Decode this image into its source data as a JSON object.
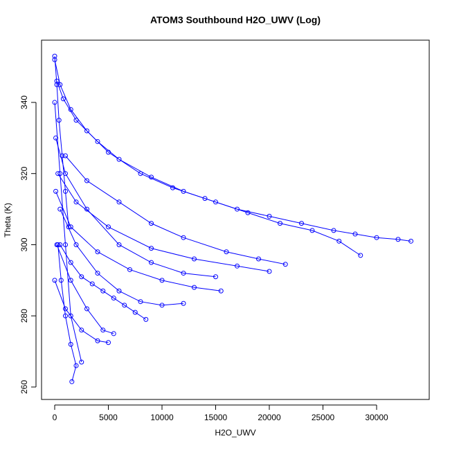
{
  "chart_data": {
    "type": "scatter",
    "title": "ATOM3 Southbound H2O_UWV (Log)",
    "x_label": "H2O_UWV",
    "y_label": "Theta (K)",
    "color": "#0000ff",
    "grid": false,
    "xlim": [
      -1226,
      34903
    ],
    "ylim": [
      256.5,
      357.5
    ],
    "xticks": [
      0,
      5000,
      10000,
      15000,
      20000,
      25000,
      30000
    ],
    "yticks": [
      260,
      280,
      300,
      320,
      340
    ],
    "series": [
      {
        "x": [
          0,
          500,
          1500,
          3000,
          5000,
          8000,
          11000,
          14000,
          17000,
          20000,
          23000,
          26000,
          28000,
          30000,
          32000,
          33200
        ],
        "values": [
          352,
          345,
          338,
          332,
          326,
          320,
          316,
          313,
          310,
          308,
          306,
          304,
          303,
          302,
          301.5,
          301
        ]
      },
      {
        "x": [
          200,
          800,
          2000,
          4000,
          6000,
          9000,
          12000,
          15000,
          18000,
          21000,
          24000,
          26500,
          28500
        ],
        "values": [
          346,
          341,
          335,
          329,
          324,
          319,
          315,
          312,
          309,
          306,
          304,
          301,
          297
        ]
      },
      {
        "x": [
          300,
          600,
          1000,
          1500,
          2000,
          1600
        ],
        "values": [
          300,
          290,
          280,
          272,
          266,
          261.5
        ]
      },
      {
        "x": [
          100,
          1000,
          3000,
          6000,
          9000,
          12000,
          15000
        ],
        "values": [
          330,
          320,
          310,
          300,
          295,
          292,
          291
        ]
      },
      {
        "x": [
          500,
          2000,
          4000,
          6000,
          8000,
          10000,
          12000
        ],
        "values": [
          310,
          300,
          292,
          287,
          284,
          283,
          283.5
        ]
      },
      {
        "x": [
          200,
          1500,
          3000,
          4500,
          5500
        ],
        "values": [
          300,
          290,
          282,
          276,
          275
        ]
      },
      {
        "x": [
          0,
          1000,
          2500,
          4000,
          5000
        ],
        "values": [
          290,
          282,
          276,
          273,
          272.5
        ]
      },
      {
        "x": [
          300,
          2000,
          5000,
          9000,
          13000,
          17000,
          20000
        ],
        "values": [
          320,
          312,
          305,
          299,
          296,
          294,
          292.5
        ]
      },
      {
        "x": [
          100,
          1500,
          4000,
          7000,
          10000,
          13000,
          15500
        ],
        "values": [
          315,
          305,
          298,
          293,
          290,
          288,
          287
        ]
      },
      {
        "x": [
          0,
          500,
          1000,
          1500,
          2500
        ],
        "values": [
          340,
          320,
          300,
          280,
          267
        ]
      },
      {
        "x": [
          1000,
          3000,
          6000,
          9000,
          12000,
          16000,
          19000,
          21500
        ],
        "values": [
          325,
          318,
          312,
          306,
          302,
          298,
          296,
          294.5
        ]
      },
      {
        "x": [
          0,
          200,
          400,
          700,
          1000,
          1300
        ],
        "values": [
          353,
          345,
          335,
          325,
          315,
          305
        ]
      },
      {
        "x": [
          500,
          1500,
          2500,
          3500,
          4500,
          5500,
          6500,
          7500,
          8500
        ],
        "values": [
          300,
          295,
          291,
          289,
          287,
          285,
          283,
          281,
          279
        ]
      }
    ]
  }
}
